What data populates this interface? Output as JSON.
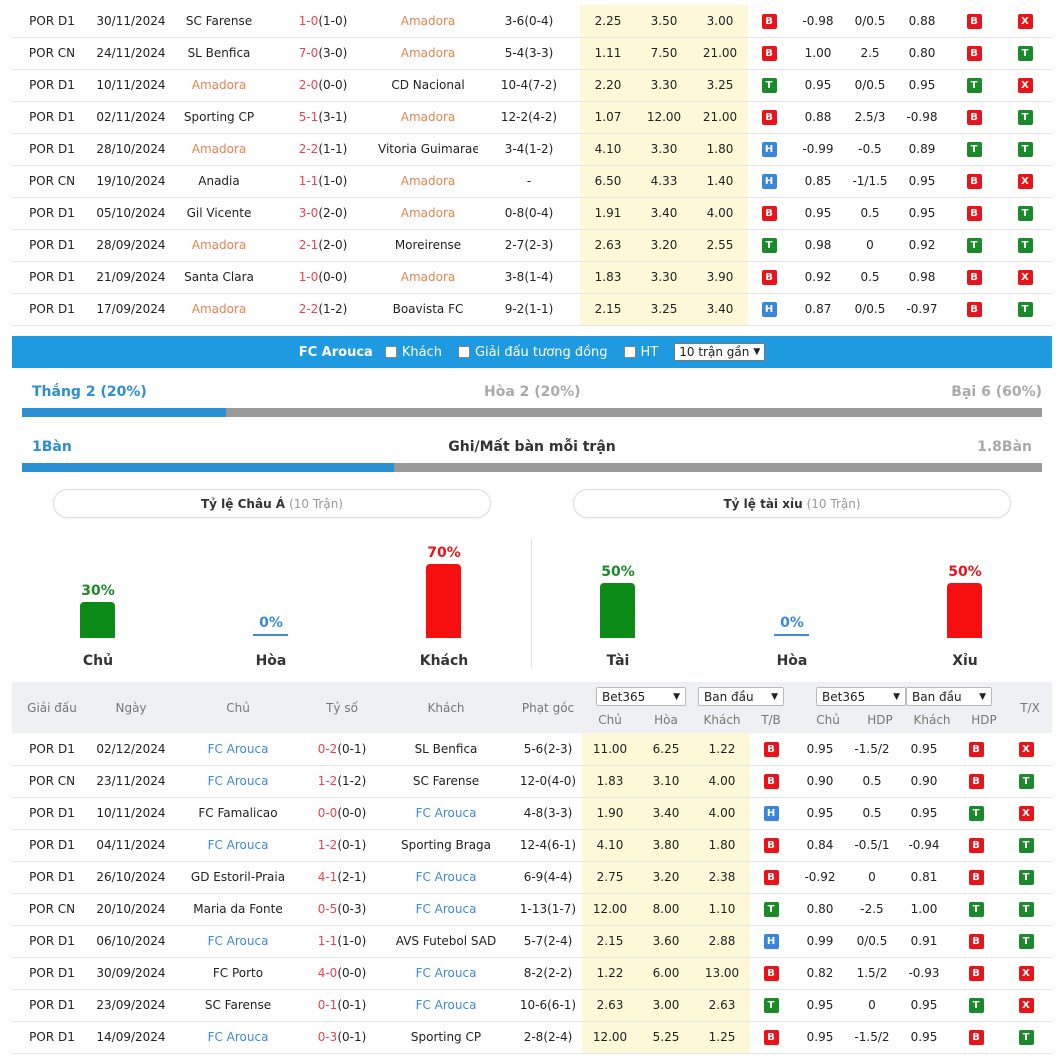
{
  "top_matches": [
    {
      "league": "POR D1",
      "date": "30/11/2024",
      "home": "SC Farense",
      "home_hl": false,
      "score": "1-0",
      "ht": "(1-0)",
      "away": "Amadora",
      "away_hl": true,
      "corner": "3-6(0-4)",
      "o1": "2.25",
      "o2": "3.50",
      "o3": "3.00",
      "r1": "B",
      "ah1": "-0.98",
      "ah2": "0/0.5",
      "ah3": "0.88",
      "r2": "B",
      "r3": "X"
    },
    {
      "league": "POR CN",
      "date": "24/11/2024",
      "home": "SL Benfica",
      "home_hl": false,
      "score": "7-0",
      "ht": "(3-0)",
      "away": "Amadora",
      "away_hl": true,
      "corner": "5-4(3-3)",
      "o1": "1.11",
      "o2": "7.50",
      "o3": "21.00",
      "r1": "B",
      "ah1": "1.00",
      "ah2": "2.5",
      "ah3": "0.80",
      "r2": "B",
      "r3": "T"
    },
    {
      "league": "POR D1",
      "date": "10/11/2024",
      "home": "Amadora",
      "home_hl": true,
      "score": "2-0",
      "ht": "(0-0)",
      "away": "CD Nacional",
      "away_hl": false,
      "corner": "10-4(7-2)",
      "o1": "2.20",
      "o2": "3.30",
      "o3": "3.25",
      "r1": "T",
      "ah1": "0.95",
      "ah2": "0/0.5",
      "ah3": "0.95",
      "r2": "T",
      "r3": "X"
    },
    {
      "league": "POR D1",
      "date": "02/11/2024",
      "home": "Sporting CP",
      "home_hl": false,
      "score": "5-1",
      "ht": "(3-1)",
      "away": "Amadora",
      "away_hl": true,
      "corner": "12-2(4-2)",
      "o1": "1.07",
      "o2": "12.00",
      "o3": "21.00",
      "r1": "B",
      "ah1": "0.88",
      "ah2": "2.5/3",
      "ah3": "-0.98",
      "r2": "B",
      "r3": "T"
    },
    {
      "league": "POR D1",
      "date": "28/10/2024",
      "home": "Amadora",
      "home_hl": true,
      "score": "2-2",
      "ht": "(1-1)",
      "away": "Vitoria Guimaraes",
      "away_hl": false,
      "corner": "3-4(1-2)",
      "o1": "4.10",
      "o2": "3.30",
      "o3": "1.80",
      "r1": "H",
      "ah1": "-0.99",
      "ah2": "-0.5",
      "ah3": "0.89",
      "r2": "T",
      "r3": "T"
    },
    {
      "league": "POR CN",
      "date": "19/10/2024",
      "home": "Anadia",
      "home_hl": false,
      "score": "1-1",
      "ht": "(1-0)",
      "away": "Amadora",
      "away_hl": true,
      "corner": "-",
      "o1": "6.50",
      "o2": "4.33",
      "o3": "1.40",
      "r1": "H",
      "ah1": "0.85",
      "ah2": "-1/1.5",
      "ah3": "0.95",
      "r2": "B",
      "r3": "X"
    },
    {
      "league": "POR D1",
      "date": "05/10/2024",
      "home": "Gil Vicente",
      "home_hl": false,
      "score": "3-0",
      "ht": "(2-0)",
      "away": "Amadora",
      "away_hl": true,
      "corner": "0-8(0-4)",
      "o1": "1.91",
      "o2": "3.40",
      "o3": "4.00",
      "r1": "B",
      "ah1": "0.95",
      "ah2": "0.5",
      "ah3": "0.95",
      "r2": "B",
      "r3": "T"
    },
    {
      "league": "POR D1",
      "date": "28/09/2024",
      "home": "Amadora",
      "home_hl": true,
      "score": "2-1",
      "ht": "(2-0)",
      "away": "Moreirense",
      "away_hl": false,
      "corner": "2-7(2-3)",
      "o1": "2.63",
      "o2": "3.20",
      "o3": "2.55",
      "r1": "T",
      "ah1": "0.98",
      "ah2": "0",
      "ah3": "0.92",
      "r2": "T",
      "r3": "T"
    },
    {
      "league": "POR D1",
      "date": "21/09/2024",
      "home": "Santa Clara",
      "home_hl": false,
      "score": "1-0",
      "ht": "(0-0)",
      "away": "Amadora",
      "away_hl": true,
      "corner": "3-8(1-4)",
      "o1": "1.83",
      "o2": "3.30",
      "o3": "3.90",
      "r1": "B",
      "ah1": "0.92",
      "ah2": "0.5",
      "ah3": "0.98",
      "r2": "B",
      "r3": "X"
    },
    {
      "league": "POR D1",
      "date": "17/09/2024",
      "home": "Amadora",
      "home_hl": true,
      "score": "2-2",
      "ht": "(1-2)",
      "away": "Boavista FC",
      "away_hl": false,
      "corner": "9-2(1-1)",
      "o1": "2.15",
      "o2": "3.25",
      "o3": "3.40",
      "r1": "H",
      "ah1": "0.87",
      "ah2": "0/0.5",
      "ah3": "-0.97",
      "r2": "B",
      "r3": "T"
    }
  ],
  "filter": {
    "team": "FC Arouca",
    "opt1": "Khách",
    "opt2": "Giải đấu tương đồng",
    "opt3": "HT",
    "select": "10 trận gần"
  },
  "wdl": {
    "win": "Thắng 2 (20%)",
    "draw": "Hòa 2 (20%)",
    "loss": "Bại 6 (60%)",
    "win_pct": 20
  },
  "goals": {
    "left": "1Bàn",
    "title": "Ghi/Mất bàn mỗi trận",
    "right": "1.8Bàn",
    "left_share": 36.5
  },
  "pills": {
    "asian": "Tỷ lệ Châu Á",
    "asian_sub": "(10 Trận)",
    "ou": "Tỷ lệ tài xỉu",
    "ou_sub": "(10 Trận)"
  },
  "stats": {
    "home": {
      "pct": "30%",
      "label": "Chủ",
      "value": 30
    },
    "draw": {
      "pct": "0%",
      "label": "Hòa",
      "value": 0
    },
    "away": {
      "pct": "70%",
      "label": "Khách",
      "value": 70
    },
    "over": {
      "pct": "50%",
      "label": "Tài",
      "value": 50
    },
    "ou_draw": {
      "pct": "0%",
      "label": "Hòa",
      "value": 0
    },
    "under": {
      "pct": "50%",
      "label": "Xỉu",
      "value": 50
    }
  },
  "header": {
    "league": "Giải đấu",
    "date": "Ngày",
    "home": "Chủ",
    "score": "Tỷ số",
    "away": "Khách",
    "corner": "Phạt góc",
    "sel1": "Bet365",
    "sel2": "Ban đầu",
    "sel3": "Bet365",
    "sel4": "Ban đầu",
    "s_home": "Chủ",
    "s_draw": "Hòa",
    "s_away": "Khách",
    "s_tb": "T/B",
    "s_home2": "Chủ",
    "s_hdp": "HDP",
    "s_away2": "Khách",
    "s_hdp2": "HDP",
    "tx": "T/X"
  },
  "bottom_matches": [
    {
      "league": "POR D1",
      "date": "02/12/2024",
      "home": "FC Arouca",
      "home_hl": true,
      "score": "0-2",
      "ht": "(0-1)",
      "away": "SL Benfica",
      "away_hl": false,
      "corner": "5-6(2-3)",
      "o1": "11.00",
      "o2": "6.25",
      "o3": "1.22",
      "r1": "B",
      "ah1": "0.95",
      "ah2": "-1.5/2",
      "ah3": "0.95",
      "r2": "B",
      "r3": "X"
    },
    {
      "league": "POR CN",
      "date": "23/11/2024",
      "home": "FC Arouca",
      "home_hl": true,
      "score": "1-2",
      "ht": "(1-2)",
      "away": "SC Farense",
      "away_hl": false,
      "corner": "12-0(4-0)",
      "o1": "1.83",
      "o2": "3.10",
      "o3": "4.00",
      "r1": "B",
      "ah1": "0.90",
      "ah2": "0.5",
      "ah3": "0.90",
      "r2": "B",
      "r3": "T"
    },
    {
      "league": "POR D1",
      "date": "10/11/2024",
      "home": "FC Famalicao",
      "home_hl": false,
      "score": "0-0",
      "ht": "(0-0)",
      "away": "FC Arouca",
      "away_hl": true,
      "corner": "4-8(3-3)",
      "o1": "1.90",
      "o2": "3.40",
      "o3": "4.00",
      "r1": "H",
      "ah1": "0.95",
      "ah2": "0.5",
      "ah3": "0.95",
      "r2": "T",
      "r3": "X"
    },
    {
      "league": "POR D1",
      "date": "04/11/2024",
      "home": "FC Arouca",
      "home_hl": true,
      "score": "1-2",
      "ht": "(0-1)",
      "away": "Sporting Braga",
      "away_hl": false,
      "corner": "12-4(6-1)",
      "o1": "4.10",
      "o2": "3.80",
      "o3": "1.80",
      "r1": "B",
      "ah1": "0.84",
      "ah2": "-0.5/1",
      "ah3": "-0.94",
      "r2": "B",
      "r3": "T"
    },
    {
      "league": "POR D1",
      "date": "26/10/2024",
      "home": "GD Estoril-Praia",
      "home_hl": false,
      "score": "4-1",
      "ht": "(2-1)",
      "away": "FC Arouca",
      "away_hl": true,
      "corner": "6-9(4-4)",
      "o1": "2.75",
      "o2": "3.20",
      "o3": "2.38",
      "r1": "B",
      "ah1": "-0.92",
      "ah2": "0",
      "ah3": "0.81",
      "r2": "B",
      "r3": "T"
    },
    {
      "league": "POR CN",
      "date": "20/10/2024",
      "home": "Maria da Fonte",
      "home_hl": false,
      "score": "0-5",
      "ht": "(0-3)",
      "away": "FC Arouca",
      "away_hl": true,
      "corner": "1-13(1-7)",
      "o1": "12.00",
      "o2": "8.00",
      "o3": "1.10",
      "r1": "T",
      "ah1": "0.80",
      "ah2": "-2.5",
      "ah3": "1.00",
      "r2": "T",
      "r3": "T"
    },
    {
      "league": "POR D1",
      "date": "06/10/2024",
      "home": "FC Arouca",
      "home_hl": true,
      "score": "1-1",
      "ht": "(1-0)",
      "away": "AVS Futebol SAD",
      "away_hl": false,
      "corner": "5-7(2-4)",
      "o1": "2.15",
      "o2": "3.60",
      "o3": "2.88",
      "r1": "H",
      "ah1": "0.99",
      "ah2": "0/0.5",
      "ah3": "0.91",
      "r2": "B",
      "r3": "T"
    },
    {
      "league": "POR D1",
      "date": "30/09/2024",
      "home": "FC Porto",
      "home_hl": false,
      "score": "4-0",
      "ht": "(0-0)",
      "away": "FC Arouca",
      "away_hl": true,
      "corner": "8-2(2-2)",
      "o1": "1.22",
      "o2": "6.00",
      "o3": "13.00",
      "r1": "B",
      "ah1": "0.82",
      "ah2": "1.5/2",
      "ah3": "-0.93",
      "r2": "B",
      "r3": "X"
    },
    {
      "league": "POR D1",
      "date": "23/09/2024",
      "home": "SC Farense",
      "home_hl": false,
      "score": "0-1",
      "ht": "(0-1)",
      "away": "FC Arouca",
      "away_hl": true,
      "corner": "10-6(6-1)",
      "o1": "2.63",
      "o2": "3.00",
      "o3": "2.63",
      "r1": "T",
      "ah1": "0.95",
      "ah2": "0",
      "ah3": "0.95",
      "r2": "T",
      "r3": "X"
    },
    {
      "league": "POR D1",
      "date": "14/09/2024",
      "home": "FC Arouca",
      "home_hl": true,
      "score": "0-3",
      "ht": "(0-1)",
      "away": "Sporting CP",
      "away_hl": false,
      "corner": "2-8(2-4)",
      "o1": "12.00",
      "o2": "5.25",
      "o3": "1.25",
      "r1": "B",
      "ah1": "0.95",
      "ah2": "-1.5/2",
      "ah3": "0.95",
      "r2": "B",
      "r3": "T"
    }
  ]
}
